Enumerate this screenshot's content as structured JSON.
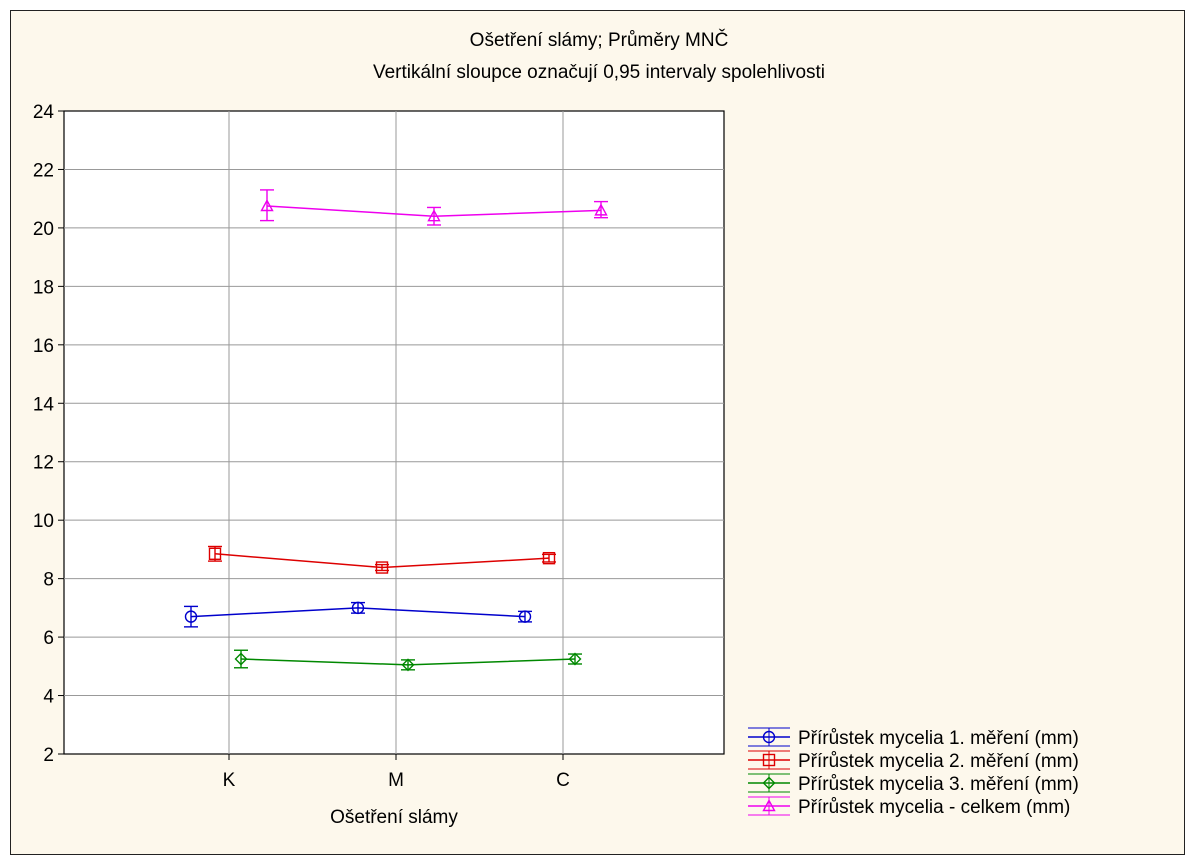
{
  "chart_data": {
    "type": "line",
    "title": "Ošetření slámy; Průměry MNČ",
    "subtitle": "Vertikální sloupce označují 0,95 intervaly spolehlivosti",
    "xlabel": "Ošetření slámy",
    "ylabel": "",
    "categories": [
      "K",
      "M",
      "C"
    ],
    "ylim": [
      2,
      24
    ],
    "yticks": [
      2,
      4,
      6,
      8,
      10,
      12,
      14,
      16,
      18,
      20,
      22,
      24
    ],
    "grid": true,
    "legend_position": "bottom-right",
    "series": [
      {
        "name": "Přírůstek mycelia 1. měření (mm)",
        "color": "#0000cc",
        "marker": "circle",
        "values": [
          6.7,
          7.0,
          6.7
        ],
        "ci_low": [
          6.35,
          6.82,
          6.52
        ],
        "ci_high": [
          7.05,
          7.18,
          6.88
        ]
      },
      {
        "name": "Přírůstek mycelia 2. měření (mm)",
        "color": "#dd0000",
        "marker": "square",
        "values": [
          8.85,
          8.38,
          8.7
        ],
        "ci_low": [
          8.6,
          8.28,
          8.57
        ],
        "ci_high": [
          9.1,
          8.48,
          8.83
        ]
      },
      {
        "name": "Přírůstek mycelia 3. měření (mm)",
        "color": "#008800",
        "marker": "diamond",
        "values": [
          5.25,
          5.05,
          5.25
        ],
        "ci_low": [
          4.95,
          4.88,
          5.08
        ],
        "ci_high": [
          5.55,
          5.22,
          5.42
        ]
      },
      {
        "name": "Přírůstek mycelia - celkem (mm)",
        "color": "#ee00ee",
        "marker": "triangle",
        "values": [
          20.75,
          20.4,
          20.6
        ],
        "ci_low": [
          20.25,
          20.1,
          20.35
        ],
        "ci_high": [
          21.3,
          20.7,
          20.9
        ]
      }
    ]
  }
}
